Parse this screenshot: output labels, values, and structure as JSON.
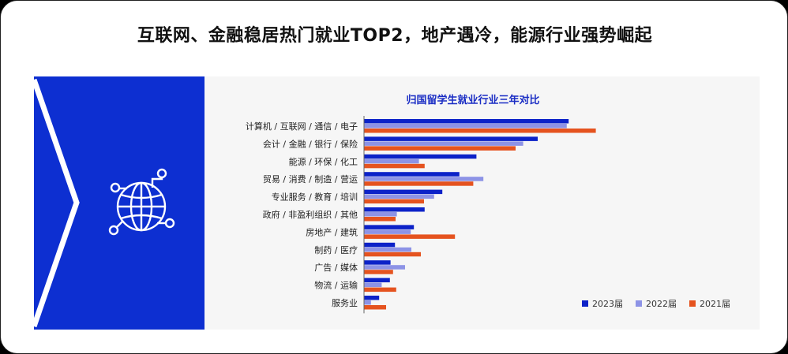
{
  "page": {
    "headline": "互联网、金融稳居热门就业TOP2，地产遇冷，能源行业强势崛起"
  },
  "colors": {
    "side_panel": "#0d2fd1",
    "series_2023": "#0c22c8",
    "series_2022": "#8d93e6",
    "series_2021": "#e5531f"
  },
  "chart_data": {
    "type": "bar",
    "orientation": "horizontal",
    "title": "归国留学生就业行业三年对比",
    "categories": [
      "计算机 / 互联网 / 通信 / 电子",
      "会计 / 金融 / 银行 / 保险",
      "能源 / 环保 / 化工",
      "贸易 / 消费 / 制造 / 营运",
      "专业服务 / 教育 / 培训",
      "政府 / 非盈利组织 / 其他",
      "房地产 / 建筑",
      "制药 / 医疗",
      "广告 / 媒体",
      "物流 / 运输",
      "服务业"
    ],
    "series": [
      {
        "name": "2023届",
        "values": [
          32.4,
          27.5,
          17.8,
          15.1,
          12.4,
          9.6,
          7.9,
          4.9,
          4.2,
          4.1,
          2.4
        ]
      },
      {
        "name": "2022届",
        "values": [
          32.1,
          25.2,
          8.7,
          18.9,
          11.1,
          5.2,
          7.4,
          7.5,
          6.5,
          2.8,
          1.1
        ]
      },
      {
        "name": "2021届",
        "values": [
          36.7,
          24.0,
          9.6,
          17.3,
          9.5,
          5.0,
          14.4,
          9.0,
          4.6,
          5.1,
          3.5
        ]
      }
    ],
    "legend_position": "bottom-right",
    "grid": false
  }
}
